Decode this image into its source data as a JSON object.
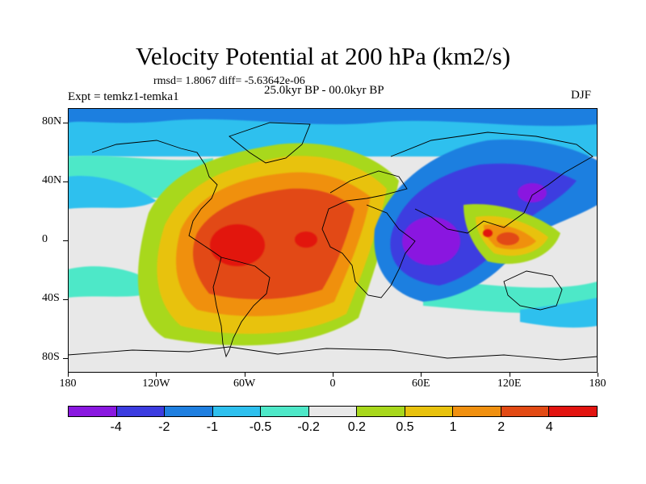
{
  "header": {
    "title": "Velocity Potential at 200 hPa (km2/s)",
    "stats": "rmsd= 1.8067 diff= -5.63642e-06",
    "experiment": "Expt = temkz1-temka1",
    "period": "25.0kyr BP - 00.0kyr BP",
    "season": "DJF"
  },
  "map": {
    "projection": "cylindrical equidistant",
    "lon_range": [
      -180,
      180
    ],
    "lat_range": [
      -90,
      90
    ],
    "lat_tick_values": [
      80,
      40,
      0,
      -40,
      -80
    ],
    "lat_tick_labels": [
      "80N",
      "40N",
      "0",
      "40S",
      "80S"
    ],
    "lon_tick_values": [
      -180,
      -120,
      -60,
      0,
      60,
      120,
      180
    ],
    "lon_tick_labels": [
      "180",
      "120W",
      "60W",
      "0",
      "60E",
      "120E",
      "180"
    ],
    "features": [
      {
        "name": "americas-positive-center",
        "lon": -70,
        "lat": -5,
        "level": 12
      },
      {
        "name": "maritime-continent-positive",
        "lon": 110,
        "lat": -5,
        "level": 10
      },
      {
        "name": "africa-indian-negative-center",
        "lon": 60,
        "lat": -5,
        "level": 0
      },
      {
        "name": "east-asia-negative",
        "lon": 130,
        "lat": 30,
        "level": 0
      }
    ]
  },
  "colorbar": {
    "colors": [
      "#8a18e0",
      "#3c3ce0",
      "#1f7fe0",
      "#2ec0ee",
      "#4ee8c8",
      "#e8e8e8",
      "#a8d81c",
      "#e8c20e",
      "#f09010",
      "#e24a14",
      "#e21410"
    ],
    "labels": [
      "-4",
      "-2",
      "-1",
      "-0.5",
      "-0.2",
      "0.2",
      "0.5",
      "1",
      "2",
      "4"
    ]
  }
}
